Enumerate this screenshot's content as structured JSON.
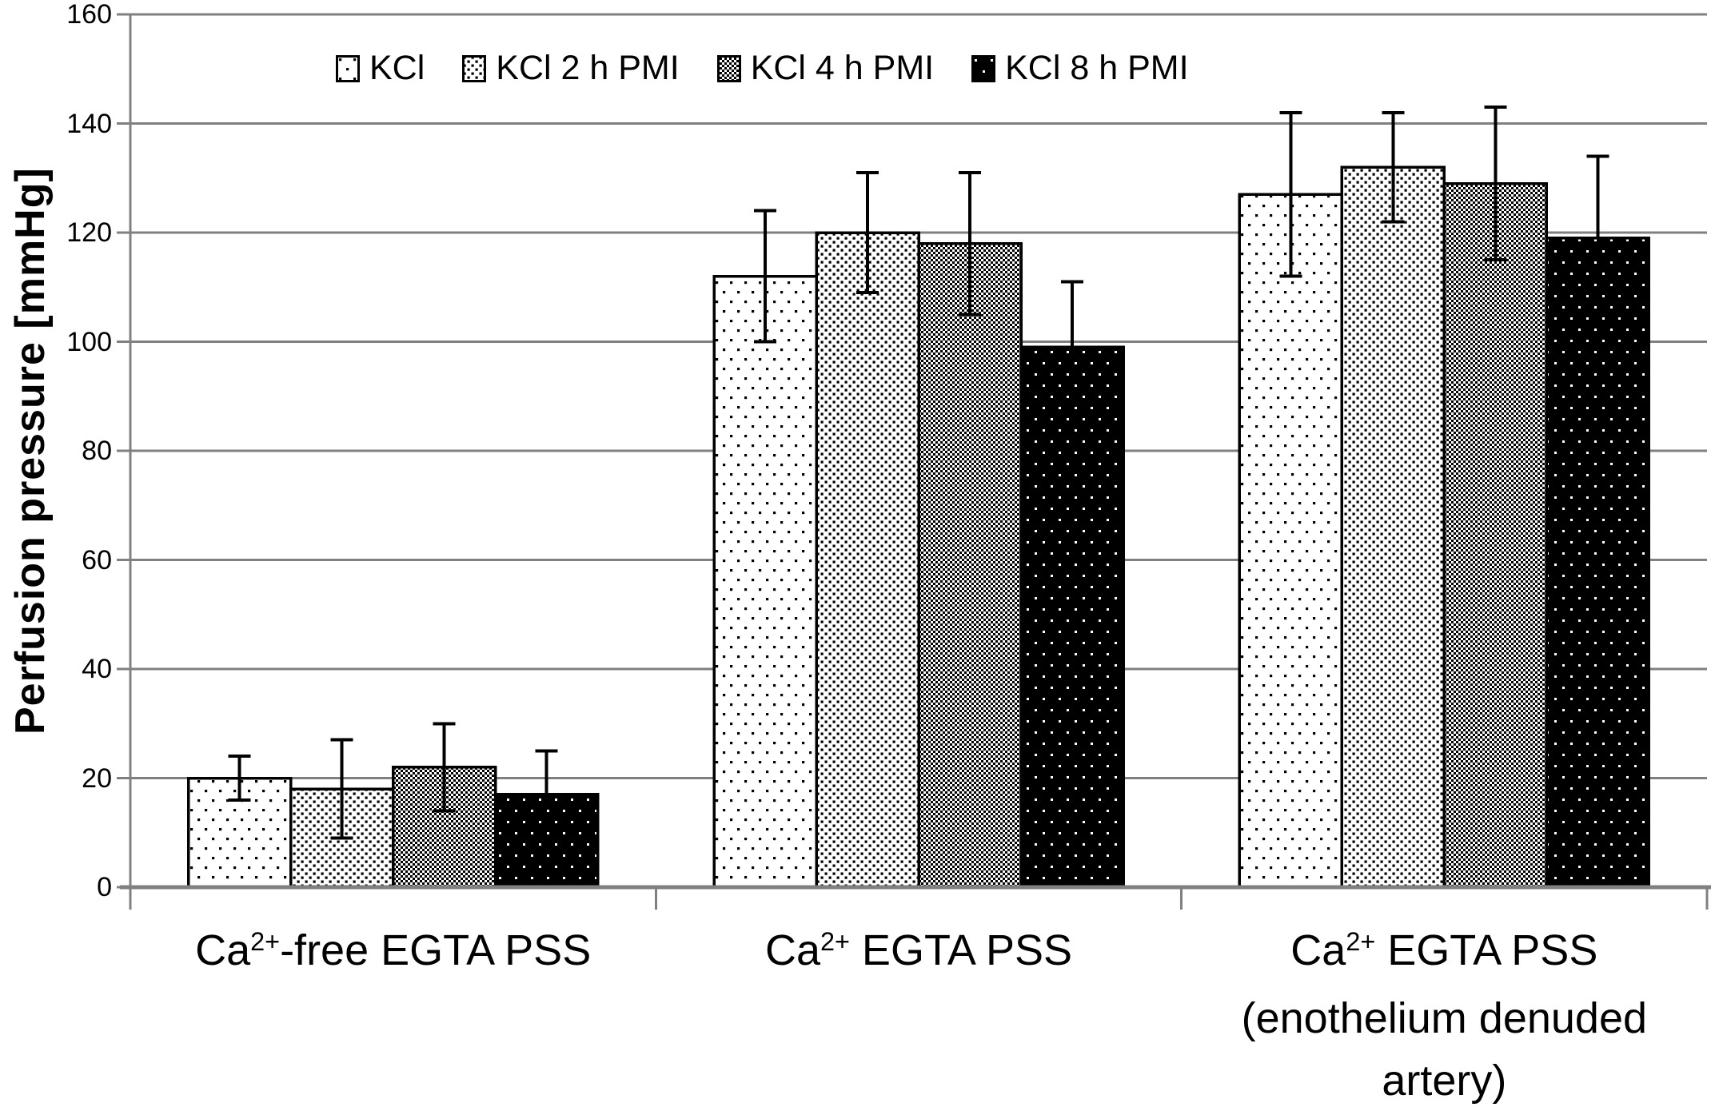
{
  "chart_data": {
    "type": "bar",
    "title": "",
    "xlabel": "",
    "ylabel": "Perfusion pressure [mmHg]",
    "ylim": [
      0,
      160
    ],
    "yticks": [
      0,
      20,
      40,
      60,
      80,
      100,
      120,
      140,
      160
    ],
    "grid": true,
    "legend_position": "top-inside-horizontal",
    "error_bars": true,
    "categories": [
      {
        "prefix": "Ca",
        "sup": "2+",
        "suffix": "-free EGTA PSS",
        "extra_lines": []
      },
      {
        "prefix": "Ca",
        "sup": "2+",
        "suffix": " EGTA PSS",
        "extra_lines": []
      },
      {
        "prefix": "Ca",
        "sup": "2+",
        "suffix": " EGTA PSS",
        "extra_lines": [
          "(enothelium denuded",
          "artery)"
        ]
      }
    ],
    "series": [
      {
        "name": "KCl",
        "pattern": "sparse-black-dots",
        "values": [
          20,
          112,
          127
        ],
        "errors": [
          4,
          12,
          15
        ]
      },
      {
        "name": "KCl 2 h PMI",
        "pattern": "dense-black-dots",
        "values": [
          18,
          120,
          132
        ],
        "errors": [
          9,
          11,
          10
        ]
      },
      {
        "name": "KCl 4 h PMI",
        "pattern": "checker",
        "values": [
          22,
          118,
          129
        ],
        "errors": [
          8,
          13,
          14
        ]
      },
      {
        "name": "KCl 8 h PMI",
        "pattern": "white-dots-on-black",
        "values": [
          17,
          99,
          119
        ],
        "errors": [
          8,
          12,
          15
        ]
      }
    ],
    "colors": {
      "ink": "#000000",
      "grid": "#808080",
      "axis": "#808080",
      "background": "#ffffff"
    }
  }
}
